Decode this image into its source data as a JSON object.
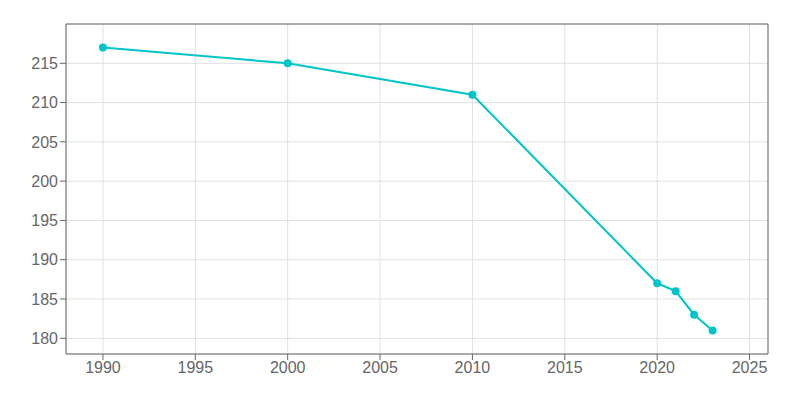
{
  "chart_data": {
    "type": "line",
    "x": [
      1990,
      2000,
      2010,
      2020,
      2021,
      2022,
      2023
    ],
    "values": [
      217,
      215,
      211,
      187,
      186,
      183,
      181
    ],
    "color": "#00C5C8",
    "marker": "o",
    "xlim": [
      1988,
      2026
    ],
    "ylim": [
      178,
      220
    ],
    "xticks": [
      1990,
      1995,
      2000,
      2005,
      2010,
      2015,
      2020,
      2025
    ],
    "yticks": [
      180,
      185,
      190,
      195,
      200,
      205,
      210,
      215
    ],
    "grid": true
  }
}
